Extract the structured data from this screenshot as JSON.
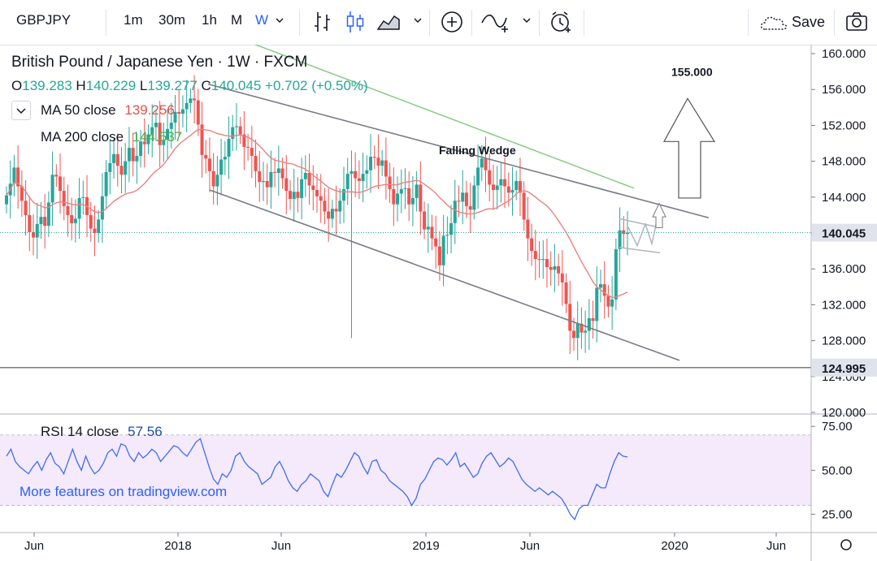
{
  "toolbar": {
    "symbol": "GBPJPY",
    "intervals": [
      "1m",
      "30m",
      "1h",
      "M",
      "W"
    ],
    "active_interval": "W",
    "save_label": "Save",
    "icons": [
      "bar-chart-icon",
      "candles-icon",
      "area-chart-icon",
      "chevron-down-icon",
      "add-icon",
      "indicators-icon",
      "chevron-down-icon",
      "alert-icon",
      "cloud-icon",
      "camera-icon"
    ]
  },
  "legend": {
    "title": "British Pound / Japanese Yen · 1W · FXCM",
    "ohlc": {
      "o": "139.283",
      "h": "140.229",
      "l": "139.277",
      "c": "140.045",
      "chg": "+0.702",
      "pct": "(+0.50%)"
    },
    "ma50": {
      "label": "MA 50 close",
      "value": "139.256",
      "color": "#e0534f"
    },
    "ma200": {
      "label": "MA 200 close",
      "value": "144.537",
      "color": "#4caf50"
    },
    "rsi": {
      "label": "RSI 14 close",
      "value": "57.56",
      "color": "#1e4ea0"
    }
  },
  "watermark": "More features on tradingview.com",
  "colors": {
    "up": "#26a69a",
    "down": "#ef5350",
    "ma50": "#e8827f",
    "ma200": "#7fc97f",
    "rsi": "#3d6ef2",
    "rsi_band": "#f3e5fb",
    "trend": "#787b86"
  },
  "chart_data": [
    {
      "type": "candlestick",
      "title": "British Pound / Japanese Yen · 1W · FXCM",
      "ylim": [
        120,
        161
      ],
      "y_ticks": [
        "160.000",
        "156.000",
        "152.000",
        "148.000",
        "144.000",
        "140.000",
        "136.000",
        "132.000",
        "128.000",
        "124.000",
        "120.000"
      ],
      "x_ticks": [
        "Jun",
        "2018",
        "Jun",
        "2019",
        "Jun",
        "2020",
        "Jun"
      ],
      "price_labels": [
        "140.045",
        "124.995"
      ],
      "current_price": 140.045,
      "horizontal_line": 124.995,
      "annotations": [
        {
          "text": "Falling Wedge"
        },
        {
          "text": "155.000"
        }
      ],
      "close_series": [
        144.2,
        145.5,
        147.3,
        145.2,
        143.6,
        142.0,
        140.1,
        139.5,
        141.0,
        141.8,
        140.8,
        143.4,
        146.5,
        146.3,
        144.7,
        143.0,
        142.0,
        141.1,
        141.6,
        143.9,
        144.0,
        142.0,
        140.5,
        140.0,
        141.5,
        144.1,
        146.8,
        147.8,
        148.8,
        147.5,
        146.5,
        148.0,
        149.5,
        148.0,
        148.6,
        150.2,
        149.9,
        151.0,
        151.8,
        152.3,
        149.8,
        150.4,
        151.6,
        152.3,
        153.5,
        153.3,
        153.8,
        154.5,
        155.0,
        154.8,
        152.1,
        148.7,
        148.3,
        146.9,
        145.2,
        146.5,
        148.2,
        148.5,
        150.5,
        151.8,
        151.9,
        151.0,
        149.6,
        149.5,
        148.6,
        146.9,
        145.7,
        145.8,
        145.1,
        146.8,
        146.7,
        147.2,
        146.1,
        144.7,
        143.8,
        144.6,
        143.9,
        146.0,
        146.7,
        145.3,
        144.8,
        144.1,
        143.6,
        142.4,
        141.6,
        142.7,
        142.4,
        143.6,
        144.9,
        146.6,
        146.9,
        146.1,
        145.8,
        146.6,
        147.0,
        148.5,
        148.4,
        147.5,
        148.1,
        146.3,
        144.9,
        143.2,
        144.4,
        144.9,
        145.0,
        143.2,
        143.9,
        145.4,
        142.4,
        140.4,
        140.7,
        139.4,
        138.5,
        136.4,
        139.7,
        139.8,
        141.1,
        143.6,
        143.5,
        144.5,
        143.0,
        142.6,
        145.3,
        147.3,
        148.3,
        147.0,
        145.4,
        144.8,
        145.3,
        146.0,
        145.2,
        144.5,
        144.8,
        145.8,
        144.5,
        141.5,
        139.4,
        138.0,
        137.1,
        137.0,
        137.1,
        136.2,
        135.9,
        136.3,
        135.5,
        134.5,
        132.1,
        129.1,
        128.3,
        129.9,
        128.9,
        129.1,
        130.5,
        130.2,
        133.9,
        134.3,
        133.0,
        131.8,
        132.6,
        138.2,
        140.3,
        139.9,
        140.05
      ]
    },
    {
      "type": "line",
      "name": "MA 50 close",
      "color": "#e8827f"
    },
    {
      "type": "line",
      "name": "MA 200 close",
      "color": "#7fc97f"
    },
    {
      "type": "line",
      "title": "RSI 14 close",
      "ylim": [
        15,
        82
      ],
      "y_ticks": [
        "75.00",
        "50.00",
        "25.00"
      ],
      "band": [
        30,
        70
      ],
      "values": [
        58,
        62,
        55,
        52,
        50,
        48,
        52,
        55,
        50,
        56,
        60,
        54,
        52,
        48,
        55,
        62,
        55,
        50,
        58,
        52,
        48,
        50,
        54,
        60,
        62,
        58,
        65,
        64,
        58,
        55,
        60,
        57,
        59,
        62,
        60,
        55,
        58,
        61,
        64,
        63,
        60,
        58,
        62,
        66,
        68,
        60,
        52,
        45,
        42,
        48,
        46,
        50,
        58,
        60,
        55,
        52,
        50,
        48,
        42,
        44,
        46,
        52,
        55,
        50,
        44,
        40,
        38,
        42,
        44,
        48,
        46,
        44,
        38,
        35,
        42,
        48,
        46,
        50,
        55,
        60,
        58,
        52,
        48,
        55,
        56,
        50,
        48,
        44,
        42,
        40,
        38,
        35,
        30,
        34,
        42,
        45,
        50,
        55,
        57,
        56,
        53,
        56,
        60,
        52,
        54,
        50,
        46,
        48,
        54,
        58,
        60,
        56,
        52,
        54,
        57,
        55,
        50,
        45,
        42,
        40,
        38,
        40,
        38,
        36,
        38,
        36,
        34,
        30,
        25,
        22,
        28,
        30,
        30,
        36,
        42,
        40,
        40,
        48,
        55,
        60,
        58,
        57.56
      ]
    }
  ]
}
